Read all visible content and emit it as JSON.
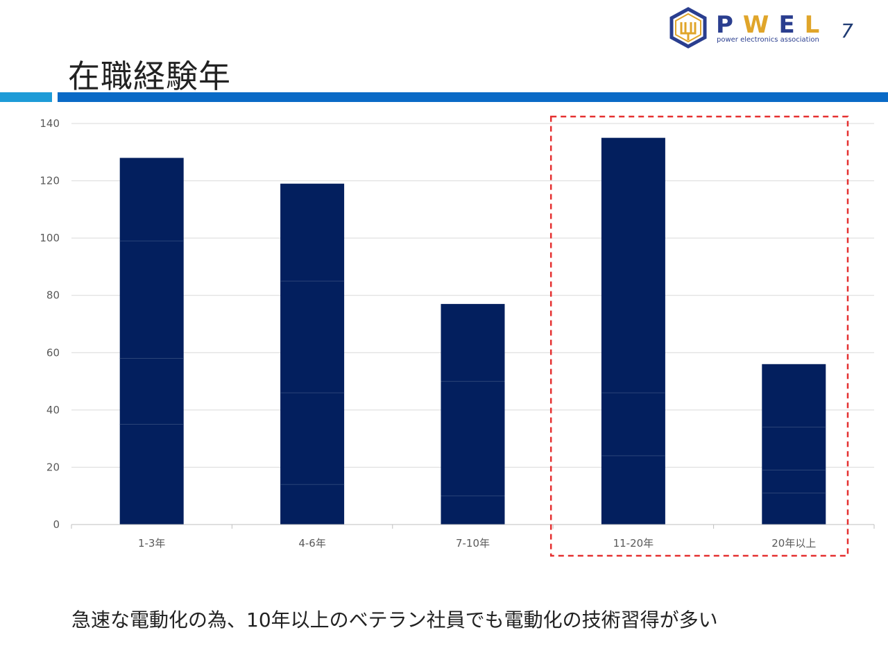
{
  "slide": {
    "title": "在職経験年",
    "page_number": "7",
    "footer_text": "急速な電動化の為、10年以上のベテラン社員でも電動化の技術習得が多い"
  },
  "logo": {
    "letters": [
      "P",
      "W",
      "E",
      "L"
    ],
    "tagline": "power electronics association",
    "colors": {
      "primary": "#2a3e8f",
      "accent": "#e0a52a"
    }
  },
  "header_colors": {
    "light": "#1e9bd7",
    "dark": "#0a6ac6"
  },
  "chart_data": {
    "type": "bar",
    "title": "",
    "xlabel": "",
    "ylabel": "",
    "categories": [
      "1-3年",
      "4-6年",
      "7-10年",
      "11-20年",
      "20年以上"
    ],
    "values": [
      128,
      119,
      77,
      135,
      56
    ],
    "segment_boundaries": [
      [
        35,
        58,
        99
      ],
      [
        14,
        46,
        85
      ],
      [
        10,
        50
      ],
      [
        24,
        46
      ],
      [
        11,
        19,
        34
      ]
    ],
    "ylim": [
      0,
      140
    ],
    "yticks": [
      0,
      20,
      40,
      60,
      80,
      100,
      120,
      140
    ],
    "grid": true,
    "legend": "none",
    "bar_color": "#031f5e",
    "highlight": {
      "categories": [
        "11-20年",
        "20年以上"
      ],
      "color": "#e53030",
      "style": "dashed"
    }
  }
}
